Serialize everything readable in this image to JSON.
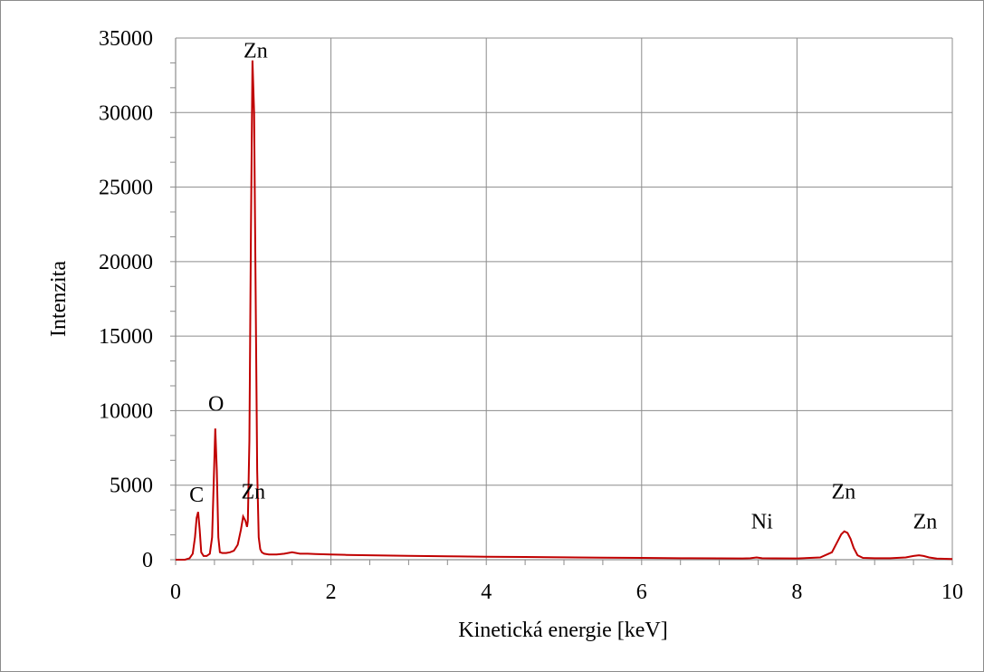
{
  "chart_data": {
    "type": "line",
    "title": "",
    "xlabel": "Kinetická energie [keV]",
    "ylabel": "Intenzita",
    "xlim": [
      0,
      10
    ],
    "ylim": [
      0,
      35000
    ],
    "x_ticks": [
      0,
      2,
      4,
      6,
      8,
      10
    ],
    "x_tick_labels": [
      "0",
      "2",
      "4",
      "6",
      "8",
      "10"
    ],
    "y_ticks": [
      0,
      5000,
      10000,
      15000,
      20000,
      25000,
      30000,
      35000
    ],
    "y_tick_labels": [
      "0",
      "5000",
      "10000",
      "15000",
      "20000",
      "25000",
      "30000",
      "35000"
    ],
    "grid": true,
    "line_color": "#c00000",
    "series": [
      {
        "x": [
          0.0,
          0.12,
          0.18,
          0.22,
          0.25,
          0.27,
          0.29,
          0.31,
          0.33,
          0.36,
          0.4,
          0.44,
          0.47,
          0.49,
          0.51,
          0.53,
          0.55,
          0.57,
          0.6,
          0.65,
          0.7,
          0.75,
          0.8,
          0.84,
          0.87,
          0.9,
          0.92,
          0.93,
          0.95,
          0.97,
          0.99,
          1.01,
          1.03,
          1.05,
          1.07,
          1.09,
          1.11,
          1.14,
          1.2,
          1.3,
          1.4,
          1.5,
          1.6,
          1.7,
          1.8,
          2.0,
          2.2,
          2.5,
          3.0,
          3.5,
          4.0,
          4.5,
          5.0,
          5.5,
          6.0,
          6.5,
          7.0,
          7.3,
          7.4,
          7.48,
          7.55,
          7.7,
          8.0,
          8.3,
          8.45,
          8.52,
          8.57,
          8.61,
          8.65,
          8.69,
          8.73,
          8.78,
          8.85,
          9.0,
          9.2,
          9.4,
          9.5,
          9.57,
          9.63,
          9.7,
          9.8,
          10.0
        ],
        "y": [
          0,
          0,
          100,
          400,
          1500,
          2800,
          3200,
          2000,
          500,
          250,
          250,
          400,
          1500,
          5000,
          8800,
          6000,
          1500,
          500,
          450,
          450,
          500,
          600,
          1000,
          2000,
          2900,
          2600,
          2200,
          2600,
          8000,
          22000,
          33500,
          30000,
          18000,
          6000,
          1500,
          700,
          500,
          400,
          350,
          350,
          400,
          500,
          400,
          400,
          380,
          350,
          320,
          300,
          260,
          230,
          200,
          180,
          160,
          140,
          120,
          100,
          90,
          85,
          100,
          150,
          100,
          90,
          85,
          150,
          500,
          1200,
          1700,
          1900,
          1800,
          1400,
          800,
          300,
          120,
          100,
          100,
          150,
          250,
          300,
          250,
          150,
          80,
          50
        ]
      }
    ],
    "annotations": [
      {
        "text": "Zn",
        "x": 1.03,
        "y": 33700
      },
      {
        "text": "O",
        "x": 0.52,
        "y": 10000
      },
      {
        "text": "C",
        "x": 0.27,
        "y": 3900
      },
      {
        "text": "Zn",
        "x": 1.0,
        "y": 4100
      },
      {
        "text": "Ni",
        "x": 7.55,
        "y": 2100
      },
      {
        "text": "Zn",
        "x": 8.6,
        "y": 4100
      },
      {
        "text": "Zn",
        "x": 9.65,
        "y": 2100
      }
    ]
  }
}
